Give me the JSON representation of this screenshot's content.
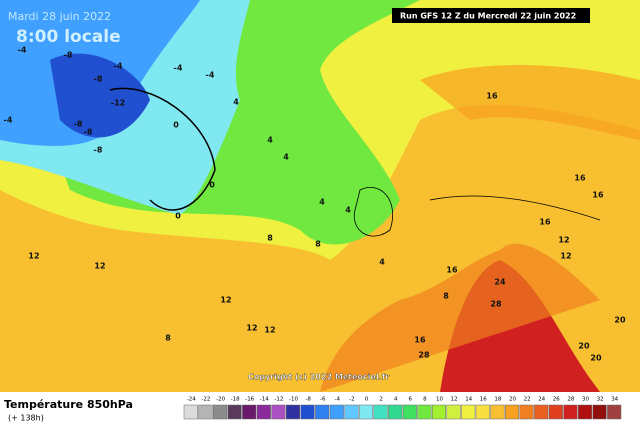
{
  "header": {
    "date": "Mardi 28 juin 2022",
    "time": "8:00 locale",
    "run": "Run GFS 12 Z du Mercredi 22 juin 2022"
  },
  "copyright": "Copyright (c) 2022 Meteociel.fr",
  "footer": {
    "title": "Température 850hPa",
    "lead": "(+ 138h)"
  },
  "scale": {
    "values": [
      -24,
      -22,
      -20,
      -18,
      -16,
      -14,
      -12,
      -10,
      -8,
      -6,
      -4,
      -2,
      0,
      2,
      4,
      6,
      8,
      10,
      12,
      14,
      16,
      18,
      20,
      22,
      24,
      26,
      28,
      30,
      32,
      34
    ],
    "colors": [
      "#dcdcdc",
      "#b4b4b4",
      "#8c8c8c",
      "#5a3a5a",
      "#6a1a6a",
      "#8a2a9a",
      "#aa50c0",
      "#3030a0",
      "#2050d0",
      "#3080f0",
      "#40a0ff",
      "#60c8ff",
      "#80e8f0",
      "#40e0c0",
      "#30d890",
      "#40e060",
      "#70e840",
      "#a0f030",
      "#d0f040",
      "#f0f040",
      "#f8e040",
      "#f8c030",
      "#f8a020",
      "#f08020",
      "#e86020",
      "#e04020",
      "#d02020",
      "#b01010",
      "#901010",
      "#a04040"
    ]
  },
  "map_labels": [
    "-8",
    "-4",
    "-8",
    "-12",
    "-8",
    "-4",
    "-8",
    "-8",
    "-4",
    "-4",
    "-4",
    "0",
    "0",
    "0",
    "4",
    "4",
    "4",
    "4",
    "4",
    "4",
    "8",
    "8",
    "8",
    "12",
    "12",
    "12",
    "12",
    "12",
    "12",
    "16",
    "16",
    "16",
    "16",
    "16",
    "20",
    "20",
    "20",
    "24",
    "28",
    "28",
    "12",
    "16",
    "8"
  ]
}
